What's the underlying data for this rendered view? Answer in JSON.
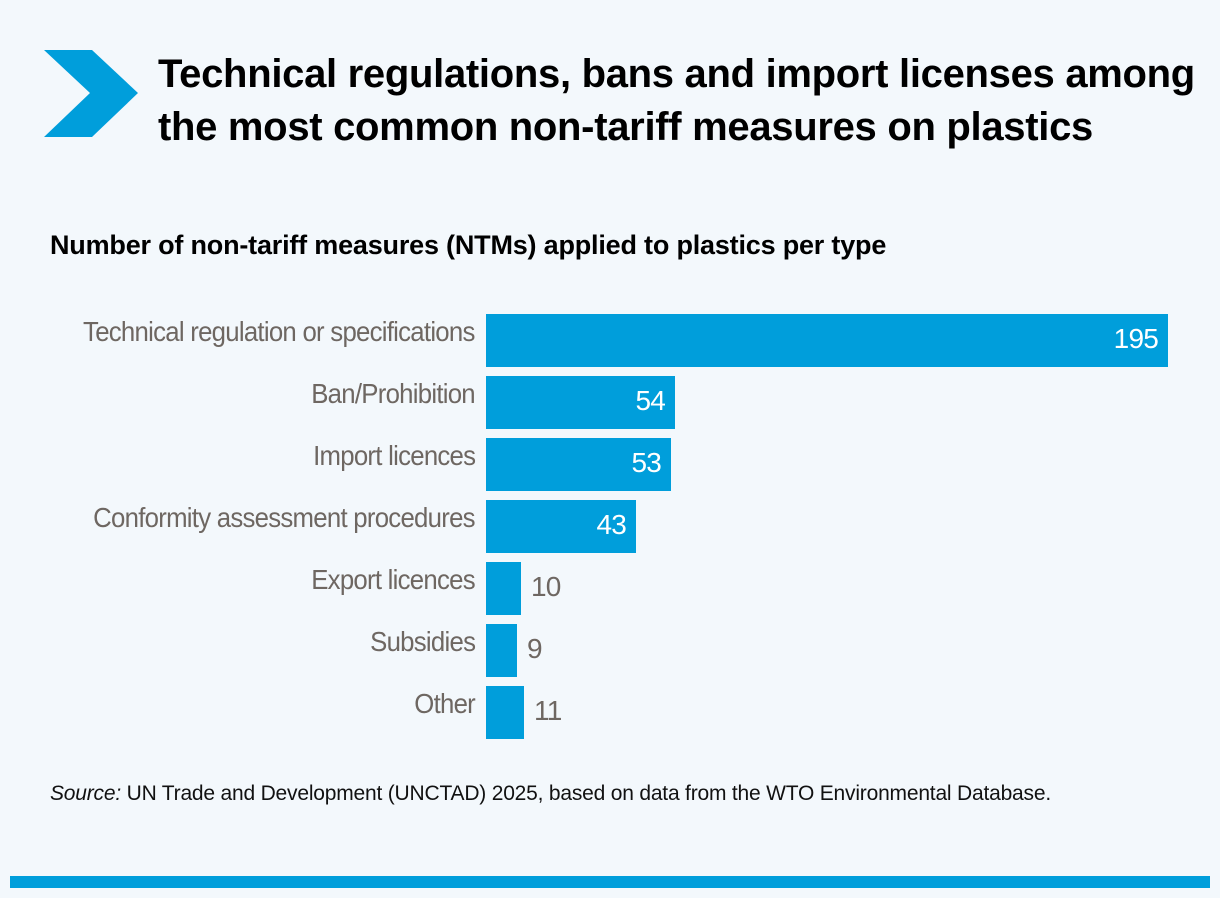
{
  "header": {
    "icon": "chevron-right-icon",
    "title": "Technical regulations, bans and import licenses among the most common non-tariff measures on plastics",
    "subtitle": "Number of non-tariff measures (NTMs) applied to plastics per type"
  },
  "colors": {
    "bar": "#009edb",
    "background": "#f3f8fc",
    "label": "#6e6762"
  },
  "source": {
    "prefix": "Source:",
    "text": " UN Trade and Development (UNCTAD) 2025, based on data from the WTO Environmental Database."
  },
  "chart_data": {
    "type": "bar",
    "orientation": "horizontal",
    "title": "Technical regulations, bans and import licenses among the most common non-tariff measures on plastics",
    "subtitle": "Number of non-tariff measures (NTMs) applied to plastics per type",
    "xlabel": "",
    "ylabel": "",
    "grid": false,
    "legend": null,
    "categories": [
      "Technical regulation or specifications",
      "Ban/Prohibition",
      "Import licences",
      "Conformity assessment procedures",
      "Export licences",
      "Subsidies",
      "Other"
    ],
    "values": [
      195,
      54,
      53,
      43,
      10,
      9,
      11
    ],
    "xlim": [
      0,
      195
    ]
  }
}
